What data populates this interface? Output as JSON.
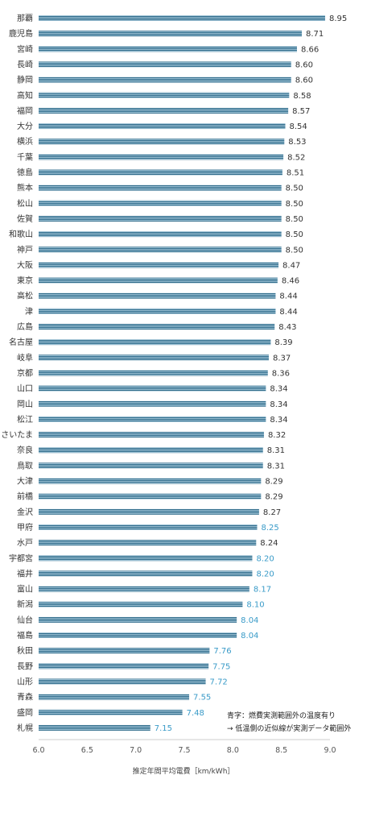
{
  "chart_data": {
    "type": "bar",
    "orientation": "horizontal",
    "xlabel": "推定年間平均電費［km/kWh］",
    "xlim": [
      6.0,
      9.0
    ],
    "xticks": [
      "6.0",
      "6.5",
      "7.0",
      "7.5",
      "8.0",
      "8.5",
      "9.0"
    ],
    "grid": false,
    "colors": {
      "bar": "#2f6b8a",
      "bar_stripe": "#9fc3d6",
      "label_default": "#333333",
      "label_highlight": "#3a9bc8"
    },
    "categories": [
      "那覇",
      "鹿児島",
      "宮崎",
      "長崎",
      "静岡",
      "高知",
      "福岡",
      "大分",
      "横浜",
      "千葉",
      "徳島",
      "熊本",
      "松山",
      "佐賀",
      "和歌山",
      "神戸",
      "大阪",
      "東京",
      "高松",
      "津",
      "広島",
      "名古屋",
      "岐阜",
      "京都",
      "山口",
      "岡山",
      "松江",
      "さいたま",
      "奈良",
      "鳥取",
      "大津",
      "前橋",
      "金沢",
      "甲府",
      "水戸",
      "宇都宮",
      "福井",
      "富山",
      "新潟",
      "仙台",
      "福島",
      "秋田",
      "長野",
      "山形",
      "青森",
      "盛岡",
      "札幌"
    ],
    "values": [
      8.95,
      8.71,
      8.66,
      8.6,
      8.6,
      8.58,
      8.57,
      8.54,
      8.53,
      8.52,
      8.51,
      8.5,
      8.5,
      8.5,
      8.5,
      8.5,
      8.47,
      8.46,
      8.44,
      8.44,
      8.43,
      8.39,
      8.37,
      8.36,
      8.34,
      8.34,
      8.34,
      8.32,
      8.31,
      8.31,
      8.29,
      8.29,
      8.27,
      8.25,
      8.24,
      8.2,
      8.2,
      8.17,
      8.1,
      8.04,
      8.04,
      7.76,
      7.75,
      7.72,
      7.55,
      7.48,
      7.15
    ],
    "value_labels": [
      "8.95",
      "8.71",
      "8.66",
      "8.60",
      "8.60",
      "8.58",
      "8.57",
      "8.54",
      "8.53",
      "8.52",
      "8.51",
      "8.50",
      "8.50",
      "8.50",
      "8.50",
      "8.50",
      "8.47",
      "8.46",
      "8.44",
      "8.44",
      "8.43",
      "8.39",
      "8.37",
      "8.36",
      "8.34",
      "8.34",
      "8.34",
      "8.32",
      "8.31",
      "8.31",
      "8.29",
      "8.29",
      "8.27",
      "8.25",
      "8.24",
      "8.20",
      "8.20",
      "8.17",
      "8.10",
      "8.04",
      "8.04",
      "7.76",
      "7.75",
      "7.72",
      "7.55",
      "7.48",
      "7.15"
    ],
    "highlighted": [
      false,
      false,
      false,
      false,
      false,
      false,
      false,
      false,
      false,
      false,
      false,
      false,
      false,
      false,
      false,
      false,
      false,
      false,
      false,
      false,
      false,
      false,
      false,
      false,
      false,
      false,
      false,
      false,
      false,
      false,
      false,
      false,
      false,
      true,
      false,
      true,
      true,
      true,
      true,
      true,
      true,
      true,
      true,
      true,
      true,
      true,
      true
    ],
    "annotation": {
      "line1": "青字：燃費実測範囲外の温度有り",
      "line2": "→ 低温側の近似線が実測データ範囲外"
    }
  }
}
